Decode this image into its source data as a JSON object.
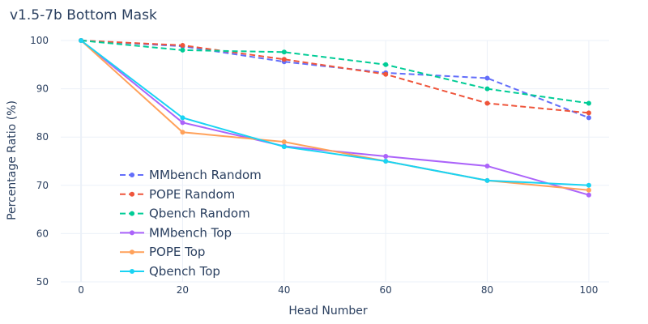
{
  "chart_data": {
    "type": "line",
    "title": "v1.5-7b Bottom Mask",
    "xlabel": "Head Number",
    "ylabel": "Percentage Ratio (%)",
    "x": [
      0,
      20,
      40,
      60,
      80,
      100
    ],
    "x_ticks": [
      "0",
      "20",
      "40",
      "60",
      "80",
      "100"
    ],
    "y_ticks": [
      "50",
      "60",
      "70",
      "80",
      "90",
      "100"
    ],
    "xlim": [
      -4,
      104
    ],
    "ylim": [
      50,
      100
    ],
    "grid": true,
    "legend_position": "lower-left",
    "series": [
      {
        "name": "MMbench Random",
        "values": [
          100,
          98.8,
          95.6,
          93.3,
          92.2,
          84
        ],
        "color": "#636efa",
        "dash": "dashed"
      },
      {
        "name": "POPE Random",
        "values": [
          100,
          99.0,
          96.1,
          93.0,
          87.0,
          85.0
        ],
        "color": "#ef553b",
        "dash": "dashed"
      },
      {
        "name": "Qbench Random",
        "values": [
          100,
          98.0,
          97.6,
          95.0,
          90.0,
          87.0
        ],
        "color": "#00cc96",
        "dash": "dashed"
      },
      {
        "name": "MMbench Top",
        "values": [
          100,
          83.0,
          78.1,
          76.0,
          74.0,
          68.0
        ],
        "color": "#ab63fa",
        "dash": "solid"
      },
      {
        "name": "POPE Top",
        "values": [
          100,
          81.0,
          79.0,
          75.0,
          71.0,
          69.0
        ],
        "color": "#ffa15a",
        "dash": "solid"
      },
      {
        "name": "Qbench Top",
        "values": [
          100,
          84.0,
          78.0,
          75.0,
          71.0,
          70.0
        ],
        "color": "#19d3f3",
        "dash": "solid"
      }
    ]
  }
}
